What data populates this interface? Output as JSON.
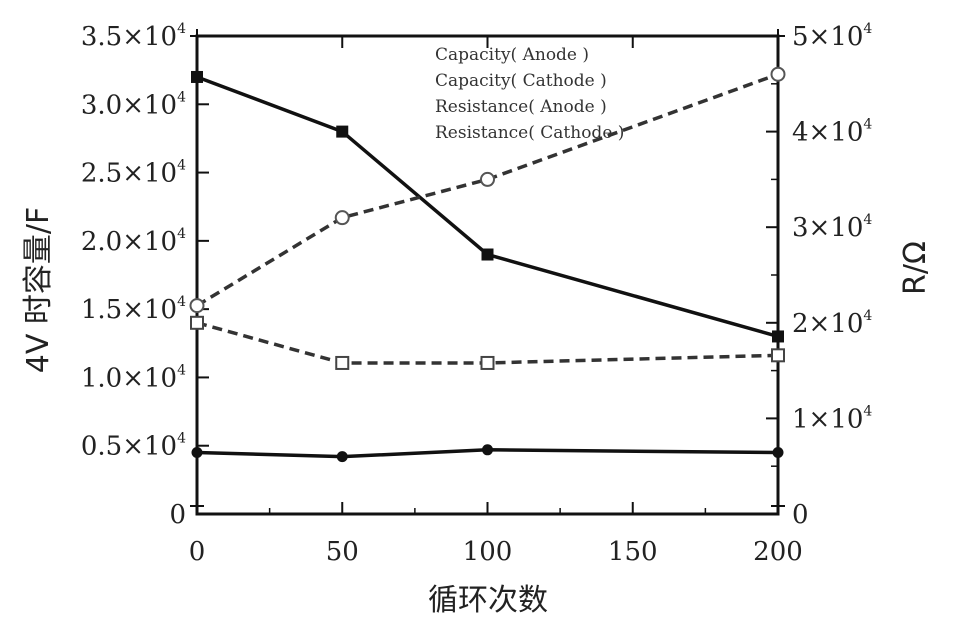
{
  "chart_data": {
    "type": "line",
    "title": "",
    "xlabel": "循环次数",
    "ylabel_left": "4V 时容量/F",
    "ylabel_right": "R/Ω",
    "x_ticks": [
      "0",
      "50",
      "100",
      "150",
      "200"
    ],
    "xlim": [
      0,
      200
    ],
    "y_left": {
      "lim": [
        0,
        35000
      ],
      "ticks": [
        {
          "value": 0,
          "mantissa": "0",
          "exp": ""
        },
        {
          "value": 5000,
          "mantissa": "0.5×10",
          "exp": "4"
        },
        {
          "value": 10000,
          "mantissa": "1.0×10",
          "exp": "4"
        },
        {
          "value": 15000,
          "mantissa": "1.5×10",
          "exp": "4"
        },
        {
          "value": 20000,
          "mantissa": "2.0×10",
          "exp": "4"
        },
        {
          "value": 25000,
          "mantissa": "2.5×10",
          "exp": "4"
        },
        {
          "value": 30000,
          "mantissa": "3.0×10",
          "exp": "4"
        },
        {
          "value": 35000,
          "mantissa": "3.5×10",
          "exp": "4"
        }
      ]
    },
    "y_right": {
      "lim": [
        0,
        50000
      ],
      "ticks": [
        {
          "value": 0,
          "mantissa": "0",
          "exp": ""
        },
        {
          "value": 10000,
          "mantissa": "1×10",
          "exp": "4"
        },
        {
          "value": 20000,
          "mantissa": "2×10",
          "exp": "4"
        },
        {
          "value": 30000,
          "mantissa": "3×10",
          "exp": "4"
        },
        {
          "value": 40000,
          "mantissa": "4×10",
          "exp": "4"
        },
        {
          "value": 50000,
          "mantissa": "5×10",
          "exp": "4"
        }
      ]
    },
    "grid": false,
    "legend_position": "top-right",
    "series": [
      {
        "name": "Capacity( Anode )",
        "axis": "left",
        "style": "solid",
        "marker": "square-filled",
        "x": [
          0,
          50,
          100,
          200
        ],
        "values": [
          32000,
          28000,
          19000,
          13000
        ]
      },
      {
        "name": "Capacity( Cathode )",
        "axis": "left",
        "style": "solid",
        "marker": "circle-filled",
        "x": [
          0,
          50,
          100,
          200
        ],
        "values": [
          4500,
          4200,
          4700,
          4500
        ]
      },
      {
        "name": "Resistance( Anode )",
        "axis": "right",
        "style": "dashed",
        "marker": "square-open",
        "x": [
          0,
          50,
          100,
          200
        ],
        "values": [
          20000,
          15800,
          15800,
          16600
        ]
      },
      {
        "name": "Resistance( Cathode )",
        "axis": "right",
        "style": "dashed",
        "marker": "circle-open",
        "x": [
          0,
          50,
          100,
          200
        ],
        "values": [
          21800,
          31000,
          35000,
          46000
        ]
      }
    ]
  }
}
